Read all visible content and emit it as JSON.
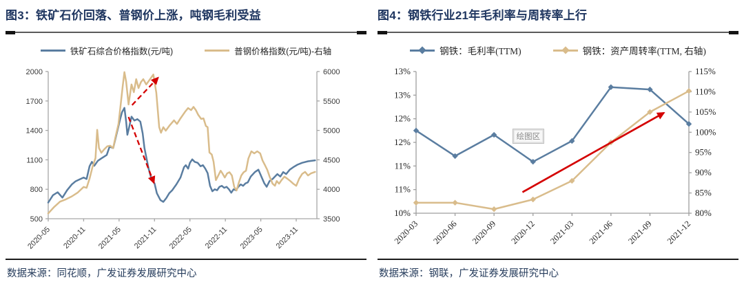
{
  "panels": [
    {
      "title": "图3：铁矿石价回落、普钢价上涨，吨钢毛利受益",
      "legend": [
        {
          "label": "铁矿石综合价格指数(元/吨)",
          "color": "#5a7da0",
          "marker": false
        },
        {
          "label": "普钢价格指数(元/吨)-右轴",
          "color": "#d9bc8b",
          "marker": false
        }
      ],
      "source": "数据来源：同花顺，广发证券发展研究中心"
    },
    {
      "title": "图4：钢铁行业21年毛利率与周转率上行",
      "legend": [
        {
          "label": "钢铁：毛利率(TTM)",
          "color": "#5a7da0",
          "marker": true
        },
        {
          "label": "钢铁：资产周转率(TTM, 右轴)",
          "color": "#d9bc8b",
          "marker": true
        }
      ],
      "source": "数据来源：钢联，广发证券发展研究中心"
    }
  ],
  "colors": {
    "title_navy": "#1f3660",
    "line_blue": "#5a7da0",
    "line_tan": "#d9bc8b",
    "arrow_red": "#d40000",
    "axis_gray": "#a6a6a6"
  },
  "chart_data": [
    {
      "type": "line",
      "title": "图3：铁矿石价回落、普钢价上涨，吨钢毛利受益",
      "x_mode": "continuous",
      "x_domain": [
        0,
        45.5
      ],
      "x_ticks": [
        {
          "m": 0,
          "label": "2020-05"
        },
        {
          "m": 6,
          "label": "2020-11"
        },
        {
          "m": 12,
          "label": "2021-05"
        },
        {
          "m": 18,
          "label": "2021-11"
        },
        {
          "m": 24,
          "label": "2022-05"
        },
        {
          "m": 30,
          "label": "2022-11"
        },
        {
          "m": 36,
          "label": "2023-05"
        },
        {
          "m": 42,
          "label": "2023-11"
        }
      ],
      "y_left": {
        "min": 500,
        "max": 2000,
        "step": 300,
        "format": "number"
      },
      "y_right": {
        "min": 3500,
        "max": 6000,
        "step": 500,
        "format": "number"
      },
      "grid": false,
      "legend_position": "top",
      "series": [
        {
          "name": "铁矿石综合价格指数(元/吨)",
          "axis": "left",
          "color": "#5a7da0",
          "marker": "none",
          "points": [
            [
              0,
              665
            ],
            [
              0.8,
              740
            ],
            [
              1.6,
              770
            ],
            [
              2.4,
              715
            ],
            [
              3.2,
              790
            ],
            [
              4,
              850
            ],
            [
              4.6,
              880
            ],
            [
              5.3,
              900
            ],
            [
              6,
              920
            ],
            [
              6.5,
              905
            ],
            [
              7,
              1035
            ],
            [
              7.4,
              1080
            ],
            [
              7.8,
              1040
            ],
            [
              8.4,
              1090
            ],
            [
              9,
              1115
            ],
            [
              9.9,
              1150
            ],
            [
              10.4,
              1235
            ],
            [
              11,
              1220
            ],
            [
              11.7,
              1395
            ],
            [
              12.2,
              1520
            ],
            [
              12.5,
              1585
            ],
            [
              12.9,
              1630
            ],
            [
              13.2,
              1490
            ],
            [
              13.4,
              1355
            ],
            [
              13.7,
              1430
            ],
            [
              14.1,
              1540
            ],
            [
              14.6,
              1500
            ],
            [
              15.1,
              1515
            ],
            [
              15.6,
              1490
            ],
            [
              16,
              1370
            ],
            [
              16.3,
              1220
            ],
            [
              17,
              1010
            ],
            [
              17.5,
              900
            ],
            [
              18,
              860
            ],
            [
              18.4,
              760
            ],
            [
              19,
              690
            ],
            [
              19.5,
              672
            ],
            [
              20,
              710
            ],
            [
              20.5,
              760
            ],
            [
              21,
              790
            ],
            [
              21.7,
              850
            ],
            [
              22.4,
              920
            ],
            [
              23,
              1025
            ],
            [
              23.3,
              1045
            ],
            [
              23.7,
              1010
            ],
            [
              24,
              1070
            ],
            [
              24.4,
              1105
            ],
            [
              24.8,
              1080
            ],
            [
              25.3,
              1070
            ],
            [
              25.8,
              1035
            ],
            [
              26.2,
              1045
            ],
            [
              26.6,
              1010
            ],
            [
              27,
              965
            ],
            [
              27.4,
              835
            ],
            [
              27.8,
              780
            ],
            [
              28.2,
              800
            ],
            [
              28.6,
              790
            ],
            [
              29,
              825
            ],
            [
              29.4,
              835
            ],
            [
              29.8,
              815
            ],
            [
              30.2,
              825
            ],
            [
              30.6,
              800
            ],
            [
              31,
              765
            ],
            [
              31.4,
              800
            ],
            [
              31.8,
              790
            ],
            [
              32.2,
              825
            ],
            [
              32.6,
              850
            ],
            [
              33,
              835
            ],
            [
              33.4,
              860
            ],
            [
              33.8,
              870
            ],
            [
              34.3,
              930
            ],
            [
              35,
              975
            ],
            [
              35.6,
              1000
            ],
            [
              36.1,
              930
            ],
            [
              36.6,
              860
            ],
            [
              37,
              825
            ],
            [
              37.5,
              885
            ],
            [
              38,
              905
            ],
            [
              38.8,
              955
            ],
            [
              39.3,
              930
            ],
            [
              39.8,
              975
            ],
            [
              40.3,
              955
            ],
            [
              40.9,
              1000
            ],
            [
              41.5,
              1025
            ],
            [
              42.2,
              1050
            ],
            [
              43,
              1070
            ],
            [
              44,
              1085
            ],
            [
              45.2,
              1095
            ]
          ]
        },
        {
          "name": "普钢价格指数(元/吨)-右轴",
          "axis": "right",
          "color": "#d9bc8b",
          "marker": "none",
          "points": [
            [
              0,
              3590
            ],
            [
              1,
              3700
            ],
            [
              2,
              3790
            ],
            [
              3,
              3830
            ],
            [
              4,
              3880
            ],
            [
              5,
              3945
            ],
            [
              6,
              4040
            ],
            [
              6.5,
              4025
            ],
            [
              7,
              4180
            ],
            [
              7.5,
              4380
            ],
            [
              8,
              4530
            ],
            [
              8.3,
              5010
            ],
            [
              8.6,
              4700
            ],
            [
              9,
              4620
            ],
            [
              9.5,
              4680
            ],
            [
              10,
              4730
            ],
            [
              10.5,
              4740
            ],
            [
              11,
              4700
            ],
            [
              11.4,
              4890
            ],
            [
              11.9,
              5110
            ],
            [
              12.3,
              5460
            ],
            [
              12.6,
              5740
            ],
            [
              12.9,
              5990
            ],
            [
              13.2,
              5830
            ],
            [
              13.6,
              5440
            ],
            [
              14.1,
              5780
            ],
            [
              14.5,
              5650
            ],
            [
              14.9,
              5870
            ],
            [
              15.3,
              5720
            ],
            [
              15.7,
              5820
            ],
            [
              16.1,
              5870
            ],
            [
              16.6,
              5780
            ],
            [
              17.1,
              5850
            ],
            [
              17.8,
              5950
            ],
            [
              18.3,
              5640
            ],
            [
              18.8,
              5055
            ],
            [
              19.1,
              4960
            ],
            [
              19.5,
              5055
            ],
            [
              19.9,
              4995
            ],
            [
              20.6,
              5090
            ],
            [
              21.3,
              5170
            ],
            [
              21.8,
              5110
            ],
            [
              22.4,
              5205
            ],
            [
              23.2,
              5320
            ],
            [
              23.7,
              5380
            ],
            [
              24.2,
              5345
            ],
            [
              24.6,
              5400
            ],
            [
              25,
              5345
            ],
            [
              25.4,
              5265
            ],
            [
              25.9,
              5195
            ],
            [
              26.3,
              5205
            ],
            [
              26.7,
              5075
            ],
            [
              27,
              5055
            ],
            [
              27.3,
              4625
            ],
            [
              27.7,
              4590
            ],
            [
              28,
              4470
            ],
            [
              28.4,
              4155
            ],
            [
              28.8,
              4235
            ],
            [
              29.2,
              4315
            ],
            [
              29.5,
              4270
            ],
            [
              29.9,
              4200
            ],
            [
              30.3,
              4270
            ],
            [
              30.7,
              4290
            ],
            [
              31.1,
              4235
            ],
            [
              31.5,
              4040
            ],
            [
              31.9,
              3980
            ],
            [
              32.3,
              4120
            ],
            [
              32.7,
              4235
            ],
            [
              33.1,
              4290
            ],
            [
              33.5,
              4315
            ],
            [
              33.9,
              4525
            ],
            [
              34.4,
              4645
            ],
            [
              34.9,
              4610
            ],
            [
              35.4,
              4645
            ],
            [
              35.9,
              4610
            ],
            [
              36.3,
              4490
            ],
            [
              36.7,
              4410
            ],
            [
              37.1,
              4330
            ],
            [
              37.5,
              4215
            ],
            [
              38,
              4095
            ],
            [
              38.4,
              4060
            ],
            [
              38.7,
              4140
            ],
            [
              39.1,
              4095
            ],
            [
              39.5,
              4155
            ],
            [
              40,
              4215
            ],
            [
              40.5,
              4180
            ],
            [
              41,
              4140
            ],
            [
              41.5,
              4095
            ],
            [
              42,
              4060
            ],
            [
              42.5,
              4180
            ],
            [
              43,
              4260
            ],
            [
              43.5,
              4295
            ],
            [
              44,
              4235
            ],
            [
              44.5,
              4270
            ],
            [
              45.2,
              4295
            ]
          ]
        }
      ],
      "annotations": [
        {
          "type": "arrow",
          "name": "trend-arrow-up",
          "style": "dashed",
          "color": "#d40000",
          "axis": "right",
          "from": [
            14.2,
            5430
          ],
          "to": [
            18.6,
            5895
          ]
        },
        {
          "type": "arrow",
          "name": "trend-arrow-down",
          "style": "dashed",
          "color": "#d40000",
          "axis": "left",
          "from": [
            13.6,
            1537
          ],
          "to": [
            17.9,
            865
          ]
        }
      ]
    },
    {
      "type": "line",
      "title": "图4：钢铁行业21年毛利率与周转率上行",
      "x_mode": "categorical",
      "categories": [
        "2020-03",
        "2020-06",
        "2020-09",
        "2020-12",
        "2021-03",
        "2021-06",
        "2021-09",
        "2021-12"
      ],
      "y_left": {
        "min": 10,
        "max": 13,
        "step": 0.5,
        "format": "percent"
      },
      "y_right": {
        "min": 80,
        "max": 115,
        "step": 5,
        "format": "percent"
      },
      "grid": false,
      "legend_position": "top",
      "series": [
        {
          "name": "钢铁：毛利率(TTM)",
          "axis": "left",
          "color": "#5a7da0",
          "marker": "diamond",
          "values": [
            11.75,
            11.21,
            11.66,
            11.09,
            11.53,
            12.67,
            12.62,
            11.89
          ]
        },
        {
          "name": "钢铁：资产周转率(TTM, 右轴)",
          "axis": "right",
          "color": "#d9bc8b",
          "marker": "diamond",
          "values": [
            82.6,
            82.6,
            81.0,
            83.4,
            88.0,
            97.5,
            105.0,
            110.2
          ]
        }
      ],
      "annotations": [
        {
          "type": "arrow",
          "name": "trend-arrow-up",
          "style": "solid",
          "color": "#d40000",
          "axis": "right",
          "from": [
            2.73,
            85.2
          ],
          "to": [
            6.36,
            104.8
          ]
        },
        {
          "type": "label",
          "name": "plot-area-label",
          "text": "绘图区",
          "axis": "left",
          "x": 2.88,
          "y": 11.63
        }
      ]
    }
  ]
}
